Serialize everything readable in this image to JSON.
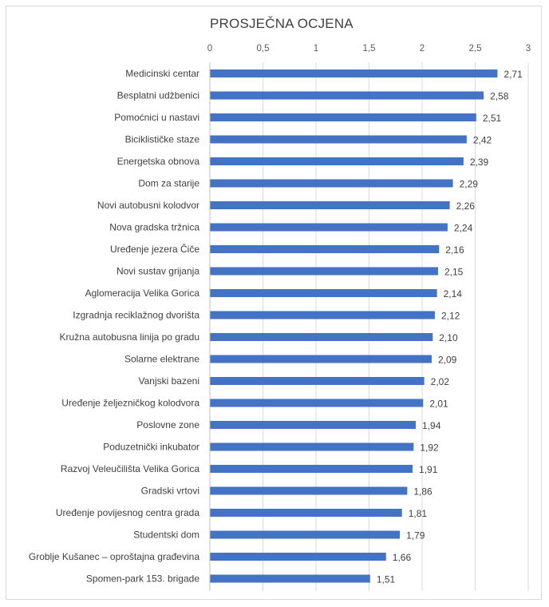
{
  "chart_data": {
    "type": "bar",
    "orientation": "horizontal",
    "title": "PROSJEČNA OCJENA",
    "xlim": [
      0,
      3
    ],
    "x_ticks": [
      "0",
      "0,5",
      "1",
      "1,5",
      "2",
      "2,5",
      "3"
    ],
    "x_tick_values": [
      0,
      0.5,
      1,
      1.5,
      2,
      2.5,
      3
    ],
    "axis_position": "top",
    "grid": true,
    "legend": "none",
    "bar_color": "#4472c4",
    "grid_color": "#d9d9d9",
    "categories": [
      "Medicinski centar",
      "Besplatni udžbenici",
      "Pomoćnici u nastavi",
      "Biciklističke staze",
      "Energetska obnova",
      "Dom za starije",
      "Novi autobusni kolodvor",
      "Nova gradska tržnica",
      "Uređenje jezera Čiče",
      "Novi sustav grijanja",
      "Aglomeracija Velika Gorica",
      "Izgradnja reciklažnog dvorišta",
      "Kružna autobusna linija po gradu",
      "Solarne elektrane",
      "Vanjski bazeni",
      "Uređenje željezničkog kolodvora",
      "Poslovne zone",
      "Poduzetnički inkubator",
      "Razvoj Veleučilišta Velika Gorica",
      "Gradski vrtovi",
      "Uređenje povijesnog centra grada",
      "Studentski dom",
      "Groblje Kušanec – oproštajna građevina",
      "Spomen-park 153. brigade"
    ],
    "values": [
      2.71,
      2.58,
      2.51,
      2.42,
      2.39,
      2.29,
      2.26,
      2.24,
      2.16,
      2.15,
      2.14,
      2.12,
      2.1,
      2.09,
      2.02,
      2.01,
      1.94,
      1.92,
      1.91,
      1.86,
      1.81,
      1.79,
      1.66,
      1.51
    ],
    "value_labels": [
      "2,71",
      "2,58",
      "2,51",
      "2,42",
      "2,39",
      "2,29",
      "2,26",
      "2,24",
      "2,16",
      "2,15",
      "2,14",
      "2,12",
      "2,10",
      "2,09",
      "2,02",
      "2,01",
      "1,94",
      "1,92",
      "1,91",
      "1,86",
      "1,81",
      "1,79",
      "1,66",
      "1,51"
    ]
  }
}
